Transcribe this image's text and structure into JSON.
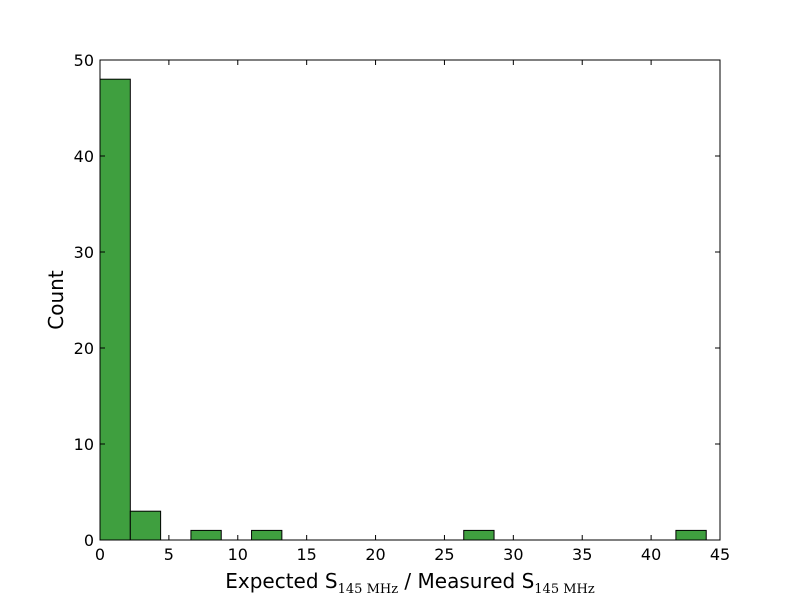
{
  "chart_data": {
    "type": "bar",
    "title": "",
    "ylabel": "Count",
    "xlabel": {
      "part1": "Expected S",
      "sub1": "145 MHz",
      "part2": " / Measured S",
      "sub2": "145 MHz"
    },
    "xlim": [
      0,
      45
    ],
    "ylim": [
      0,
      50
    ],
    "xticks": [
      0,
      5,
      10,
      15,
      20,
      25,
      30,
      35,
      40,
      45
    ],
    "yticks": [
      0,
      10,
      20,
      30,
      40,
      50
    ],
    "bin_edges": [
      0.0,
      2.2,
      4.4,
      6.6,
      8.8,
      11.0,
      13.2,
      15.4,
      17.6,
      19.8,
      22.0,
      24.2,
      26.4,
      28.6,
      30.8,
      33.0,
      35.2,
      37.4,
      39.6,
      41.8,
      44.0
    ],
    "values": [
      48,
      3,
      0,
      1,
      0,
      1,
      0,
      0,
      0,
      0,
      0,
      0,
      1,
      0,
      0,
      0,
      0,
      0,
      0,
      1
    ],
    "bar_color": "#3f9f3f",
    "edge_color": "#000000",
    "grid": false
  }
}
